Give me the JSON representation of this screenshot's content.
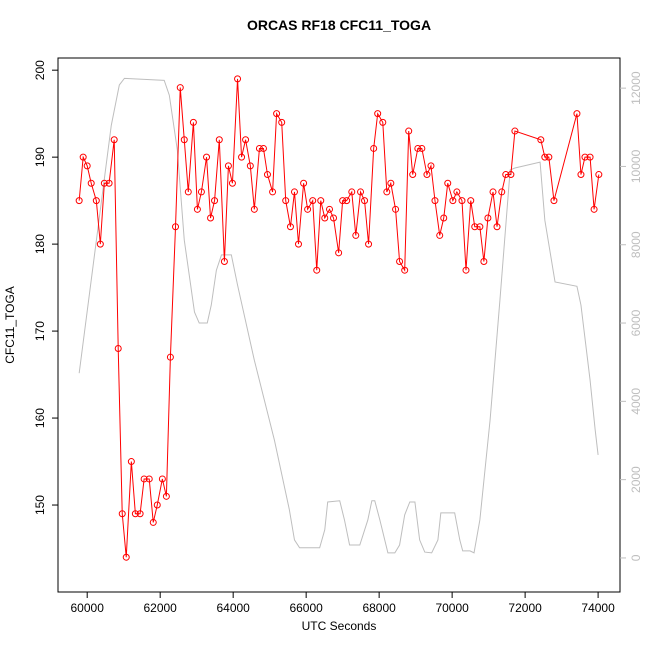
{
  "chart_data": {
    "type": "line",
    "title": "ORCAS RF18 CFC11_TOGA",
    "xlabel": "UTC Seconds",
    "ylabel": "CFC11_TOGA",
    "xlim": [
      59200,
      74600
    ],
    "xticks": [
      60000,
      62000,
      64000,
      66000,
      68000,
      70000,
      72000,
      74000
    ],
    "ylim": [
      140,
      201.4
    ],
    "yticks": [
      150,
      160,
      170,
      180,
      190,
      200
    ],
    "y2lim": [
      -870,
      12770
    ],
    "y2ticks": [
      0,
      2000,
      4000,
      6000,
      8000,
      10000,
      12000
    ],
    "y2color": "#bebebe",
    "series": [
      {
        "color": "#bebebe",
        "axis": "y2",
        "x": [
          59780,
          60660,
          60880,
          61020,
          62110,
          62250,
          62470,
          62660,
          62940,
          63070,
          63290,
          63400,
          63540,
          63680,
          63950,
          64120,
          64580,
          65130,
          65540,
          65680,
          65820,
          66370,
          66510,
          66590,
          66920,
          67050,
          67190,
          67470,
          67690,
          67800,
          67880,
          68020,
          68240,
          68430,
          68560,
          68700,
          68840,
          68980,
          69110,
          69250,
          69440,
          69610,
          69690,
          70070,
          70210,
          70290,
          70490,
          70600,
          70760,
          71040,
          71310,
          71590,
          71720,
          72410,
          72540,
          72820,
          73420,
          73530,
          73780,
          73920,
          74000
        ],
        "values": [
          4720,
          11050,
          12080,
          12250,
          12200,
          11820,
          10420,
          8120,
          6280,
          6000,
          6000,
          6460,
          7350,
          7740,
          7740,
          6970,
          5050,
          3010,
          1230,
          460,
          260,
          260,
          720,
          1430,
          1460,
          970,
          330,
          330,
          970,
          1460,
          1460,
          970,
          130,
          130,
          330,
          1100,
          1430,
          1430,
          460,
          150,
          130,
          460,
          1150,
          1150,
          460,
          180,
          180,
          130,
          970,
          3520,
          6590,
          9910,
          9960,
          10110,
          8630,
          7050,
          6940,
          6460,
          4540,
          3270,
          2630
        ]
      },
      {
        "color": "#ff0000",
        "marker": "circle",
        "x": [
          59780,
          59890,
          60000,
          60110,
          60250,
          60360,
          60470,
          60600,
          60740,
          60850,
          60960,
          61070,
          61210,
          61320,
          61450,
          61560,
          61700,
          61810,
          61920,
          62060,
          62170,
          62280,
          62420,
          62550,
          62660,
          62770,
          62910,
          63020,
          63130,
          63270,
          63380,
          63490,
          63620,
          63760,
          63870,
          63980,
          64120,
          64230,
          64340,
          64470,
          64580,
          64720,
          64830,
          64940,
          65080,
          65190,
          65330,
          65440,
          65570,
          65680,
          65790,
          65930,
          66040,
          66180,
          66290,
          66400,
          66510,
          66640,
          66750,
          66890,
          67000,
          67110,
          67250,
          67360,
          67490,
          67600,
          67710,
          67850,
          67960,
          68100,
          68210,
          68320,
          68450,
          68560,
          68700,
          68810,
          68920,
          69060,
          69170,
          69310,
          69420,
          69530,
          69660,
          69770,
          69880,
          70020,
          70130,
          70270,
          70380,
          70510,
          70620,
          70760,
          70870,
          70980,
          71120,
          71230,
          71360,
          71470,
          71610,
          71720,
          72430,
          72540,
          72650,
          72790,
          73420,
          73530,
          73640,
          73780,
          73890,
          74020
        ],
        "values": [
          185,
          190,
          189,
          187,
          185,
          180,
          187,
          187,
          192,
          168,
          149,
          144,
          155,
          149,
          149,
          153,
          153,
          148,
          150,
          153,
          151,
          167,
          182,
          198,
          192,
          186,
          194,
          184,
          186,
          190,
          183,
          185,
          192,
          178,
          189,
          187,
          199,
          190,
          192,
          189,
          184,
          191,
          191,
          188,
          186,
          195,
          194,
          185,
          182,
          186,
          180,
          187,
          184,
          185,
          177,
          185,
          183,
          184,
          183,
          179,
          185,
          185,
          186,
          181,
          186,
          185,
          180,
          191,
          195,
          194,
          186,
          187,
          184,
          178,
          177,
          193,
          188,
          191,
          191,
          188,
          189,
          185,
          181,
          183,
          187,
          185,
          186,
          185,
          177,
          185,
          182,
          182,
          178,
          183,
          186,
          182,
          186,
          188,
          188,
          193,
          192,
          190,
          190,
          185,
          195,
          188,
          190,
          190,
          184,
          188
        ]
      }
    ]
  }
}
